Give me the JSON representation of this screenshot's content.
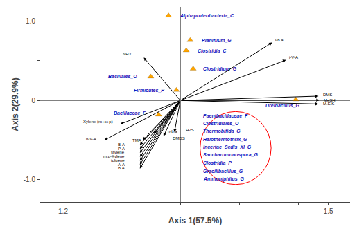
{
  "chart_data": {
    "type": "biplot",
    "xlabel": "Axis 1(57.5%)",
    "ylabel": "Axis 2(29.9%)",
    "xlim": [
      -1.42,
      1.72
    ],
    "ylim": [
      -1.28,
      1.18
    ],
    "xticks": [
      -1.2,
      {
        "value": -0.6,
        "label": null
      },
      {
        "value": 0.0,
        "label": null
      },
      {
        "value": 0.6,
        "label": null
      },
      {
        "value": 1.2,
        "label": null
      },
      1.5
    ],
    "yticks": [
      {
        "value": -1.0,
        "label": "-1.0"
      },
      {
        "value": -0.5,
        "label": null
      },
      0,
      {
        "value": 0.5,
        "label": null
      },
      {
        "value": 1.0,
        "label": "1.0"
      }
    ],
    "grid": false,
    "points": {
      "type": "scatter",
      "marker": "triangle-up",
      "color": "#FFA500",
      "label_color": "#1414BB",
      "values": [
        {
          "x": -0.12,
          "y": 1.07,
          "label": "Alphaproteobacteria_C",
          "label_x": -0.02,
          "label_y": 1.07,
          "anchor": "left"
        },
        {
          "x": 0.1,
          "y": 0.76,
          "label": "Planifilum_G",
          "label_x": 0.2,
          "label_y": 0.76,
          "anchor": "left"
        },
        {
          "x": 0.06,
          "y": 0.63,
          "label": "Clostridia_C",
          "label_x": 0.16,
          "label_y": 0.63,
          "anchor": "left"
        },
        {
          "x": 0.13,
          "y": 0.4,
          "label": "Clostridium_G",
          "label_x": 0.22,
          "label_y": 0.4,
          "anchor": "left"
        },
        {
          "x": -0.3,
          "y": 0.3,
          "label": "Bacillales_O",
          "label_x": -0.42,
          "label_y": 0.3,
          "anchor": "right"
        },
        {
          "x": -0.04,
          "y": 0.13,
          "label": "Firmicutes_P",
          "label_x": -0.15,
          "label_y": 0.13,
          "anchor": "right"
        },
        {
          "x": -0.22,
          "y": -0.18,
          "label": "Bacillaceae_F",
          "label_x": -0.33,
          "label_y": -0.16,
          "anchor": "right"
        },
        {
          "x": 1.17,
          "y": 0.01,
          "label": "Ureibacillus_G",
          "label_x": 0.85,
          "label_y": -0.065,
          "anchor": "left"
        }
      ]
    },
    "arrows": {
      "color": "black",
      "values": [
        {
          "x": 0.93,
          "y": 0.73,
          "label": "i-b.a",
          "label_x": 0.95,
          "label_y": 0.76,
          "anchor": "left"
        },
        {
          "x": 1.07,
          "y": 0.51,
          "label": "i-V-A",
          "label_x": 1.09,
          "label_y": 0.54,
          "anchor": "left"
        },
        {
          "x": 1.4,
          "y": 0.055,
          "label": "DMS",
          "label_x": 1.43,
          "label_y": 0.075,
          "anchor": "left"
        },
        {
          "x": 1.41,
          "y": 0.005,
          "label": "MeSH",
          "label_x": 1.44,
          "label_y": 0.005,
          "anchor": "left"
        },
        {
          "x": 1.4,
          "y": -0.045,
          "label": "M.E.K",
          "label_x": 1.43,
          "label_y": -0.045,
          "anchor": "left"
        },
        {
          "x": -0.37,
          "y": 0.54,
          "label": "NH3",
          "label_x": -0.6,
          "label_y": 0.59,
          "anchor": "left"
        },
        {
          "x": -0.61,
          "y": -0.3,
          "label": "Xylene (m+o+p)",
          "label_x": -1.0,
          "label_y": -0.265,
          "anchor": "left"
        },
        {
          "x": -0.77,
          "y": -0.5,
          "label": "n-V-A",
          "label_x": -0.97,
          "label_y": -0.49,
          "anchor": "left"
        },
        {
          "x": -0.38,
          "y": -0.5,
          "label": "TMA",
          "label_x": -0.38,
          "label_y": -0.5,
          "anchor": "right"
        },
        {
          "x": -0.41,
          "y": -0.56,
          "label": "B-A",
          "label_x": -0.55,
          "label_y": -0.555,
          "anchor": "right"
        },
        {
          "x": -0.41,
          "y": -0.61,
          "label": "P-A",
          "label_x": -0.55,
          "label_y": -0.605,
          "anchor": "right"
        },
        {
          "x": -0.41,
          "y": -0.66,
          "label": "stylene",
          "label_x": -0.55,
          "label_y": -0.655,
          "anchor": "right"
        },
        {
          "x": -0.41,
          "y": -0.71,
          "label": "m.p-Xylene",
          "label_x": -0.55,
          "label_y": -0.705,
          "anchor": "right"
        },
        {
          "x": -0.41,
          "y": -0.76,
          "label": "toluene",
          "label_x": -0.55,
          "label_y": -0.755,
          "anchor": "right"
        },
        {
          "x": -0.41,
          "y": -0.81,
          "label": "A-A",
          "label_x": -0.55,
          "label_y": -0.805,
          "anchor": "right"
        },
        {
          "x": -0.41,
          "y": -0.86,
          "label": "B.A",
          "label_x": -0.55,
          "label_y": -0.855,
          "anchor": "right"
        },
        {
          "x": -0.27,
          "y": -0.42,
          "label": "n-b.a",
          "label_x": -0.14,
          "label_y": -0.39,
          "anchor": "left"
        },
        {
          "x": -0.17,
          "y": -0.45,
          "label": "DMDS",
          "label_x": -0.09,
          "label_y": -0.48,
          "anchor": "left"
        },
        {
          "x": -0.06,
          "y": -0.4,
          "label": "H2S",
          "label_x": 0.04,
          "label_y": -0.37,
          "anchor": "left"
        }
      ]
    },
    "texts": {
      "color": "#1414BB",
      "values": [
        {
          "x": 0.22,
          "y": -0.19,
          "label": "Paenibacillaceae_F"
        },
        {
          "x": 0.22,
          "y": -0.29,
          "label": "Clostridiales_O"
        },
        {
          "x": 0.22,
          "y": -0.39,
          "label": "Thermobifida_G"
        },
        {
          "x": 0.22,
          "y": -0.49,
          "label": "Halothermothrix_G"
        },
        {
          "x": 0.22,
          "y": -0.59,
          "label": "Incertae_Sedis_XI_G"
        },
        {
          "x": 0.22,
          "y": -0.69,
          "label": "Saccharomonospora_G"
        },
        {
          "x": 0.22,
          "y": -0.79,
          "label": "Clostridia_P"
        },
        {
          "x": 0.22,
          "y": -0.89,
          "label": "Gracilibacillus_G"
        },
        {
          "x": 0.22,
          "y": -0.99,
          "label": "Ammoniphilus_G"
        }
      ]
    },
    "ellipse": {
      "cx": 0.56,
      "cy": -0.6,
      "rx": 0.36,
      "ry": 0.46,
      "color": "red"
    }
  }
}
